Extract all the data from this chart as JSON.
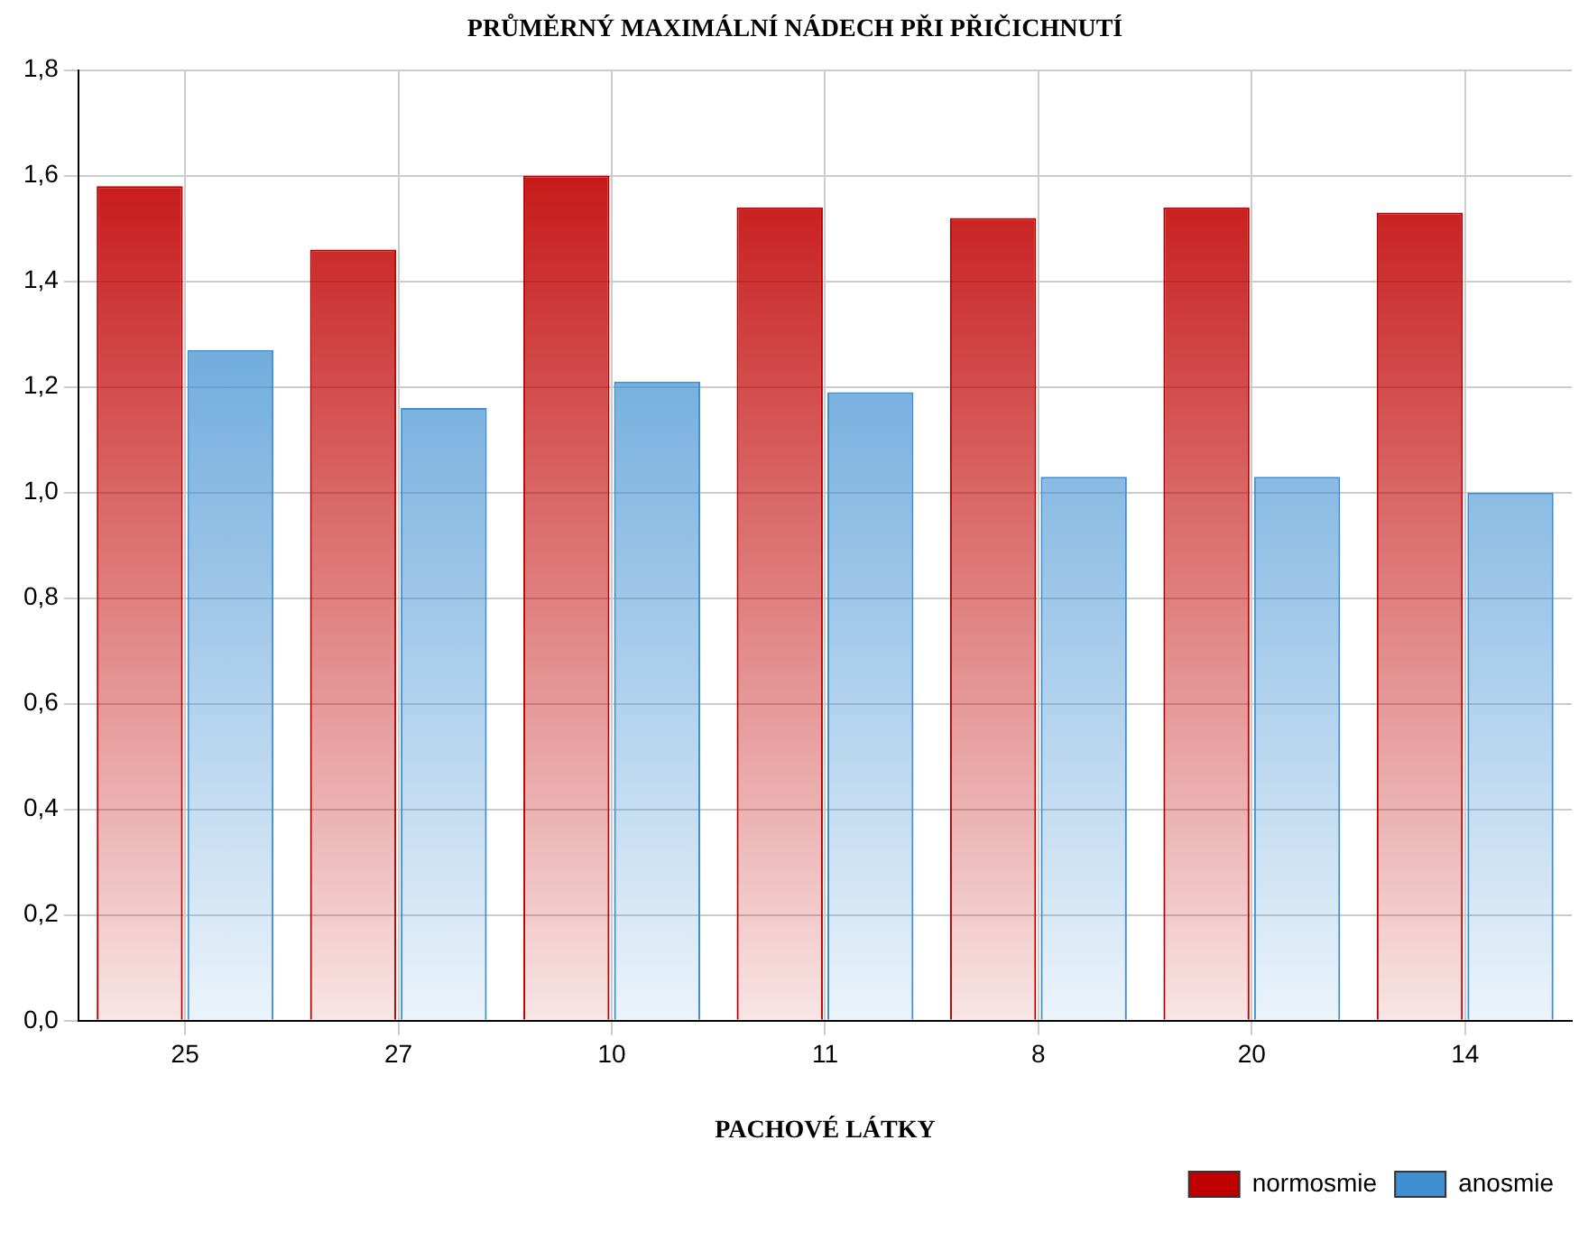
{
  "chart_data": {
    "type": "bar",
    "title": "PRŮMĚRNÝ MAXIMÁLNÍ NÁDECH PŘI PŘIČICHNUTÍ",
    "xlabel": "PACHOVÉ LÁTKY",
    "categories": [
      "25",
      "27",
      "10",
      "11",
      "8",
      "20",
      "14"
    ],
    "series": [
      {
        "name": "normosmie",
        "color": "#c00000",
        "values": [
          1.58,
          1.46,
          1.6,
          1.54,
          1.52,
          1.54,
          1.53
        ]
      },
      {
        "name": "anosmie",
        "color": "#3f8fd2",
        "values": [
          1.27,
          1.16,
          1.21,
          1.19,
          1.03,
          1.03,
          1.0
        ]
      }
    ],
    "ylim": [
      0,
      1.8
    ],
    "yticks": [
      {
        "value": 0,
        "label": "0,0"
      },
      {
        "value": 0.2,
        "label": "0,2"
      },
      {
        "value": 0.4,
        "label": "0,4"
      },
      {
        "value": 0.6,
        "label": "0,6"
      },
      {
        "value": 0.8,
        "label": "0,8"
      },
      {
        "value": 1,
        "label": "1,0"
      },
      {
        "value": 1.2,
        "label": "1,2"
      },
      {
        "value": 1.4,
        "label": "1,4"
      },
      {
        "value": 1.6,
        "label": "1,6"
      },
      {
        "value": 1.8,
        "label": "1,8"
      }
    ],
    "grid": true,
    "legend": "bottom right"
  }
}
